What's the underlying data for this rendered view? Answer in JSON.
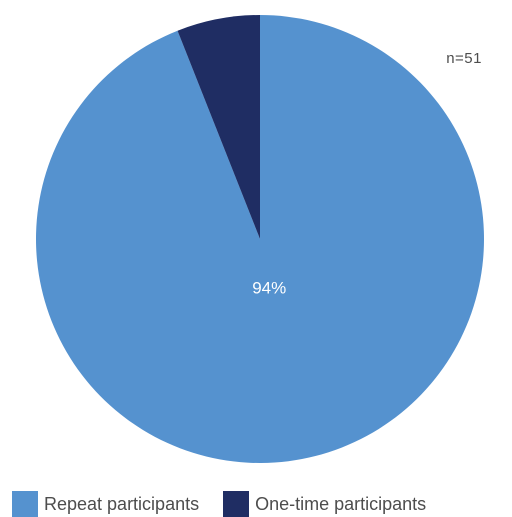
{
  "chart_data": {
    "type": "pie",
    "note": "n=51",
    "series": [
      {
        "name": "Repeat participants",
        "value": 94,
        "color": "#5592cf"
      },
      {
        "name": "One-time participants",
        "value": 6,
        "color": "#1f2d63"
      }
    ],
    "data_labels": [
      {
        "series_index": 0,
        "text": "94%"
      }
    ]
  }
}
